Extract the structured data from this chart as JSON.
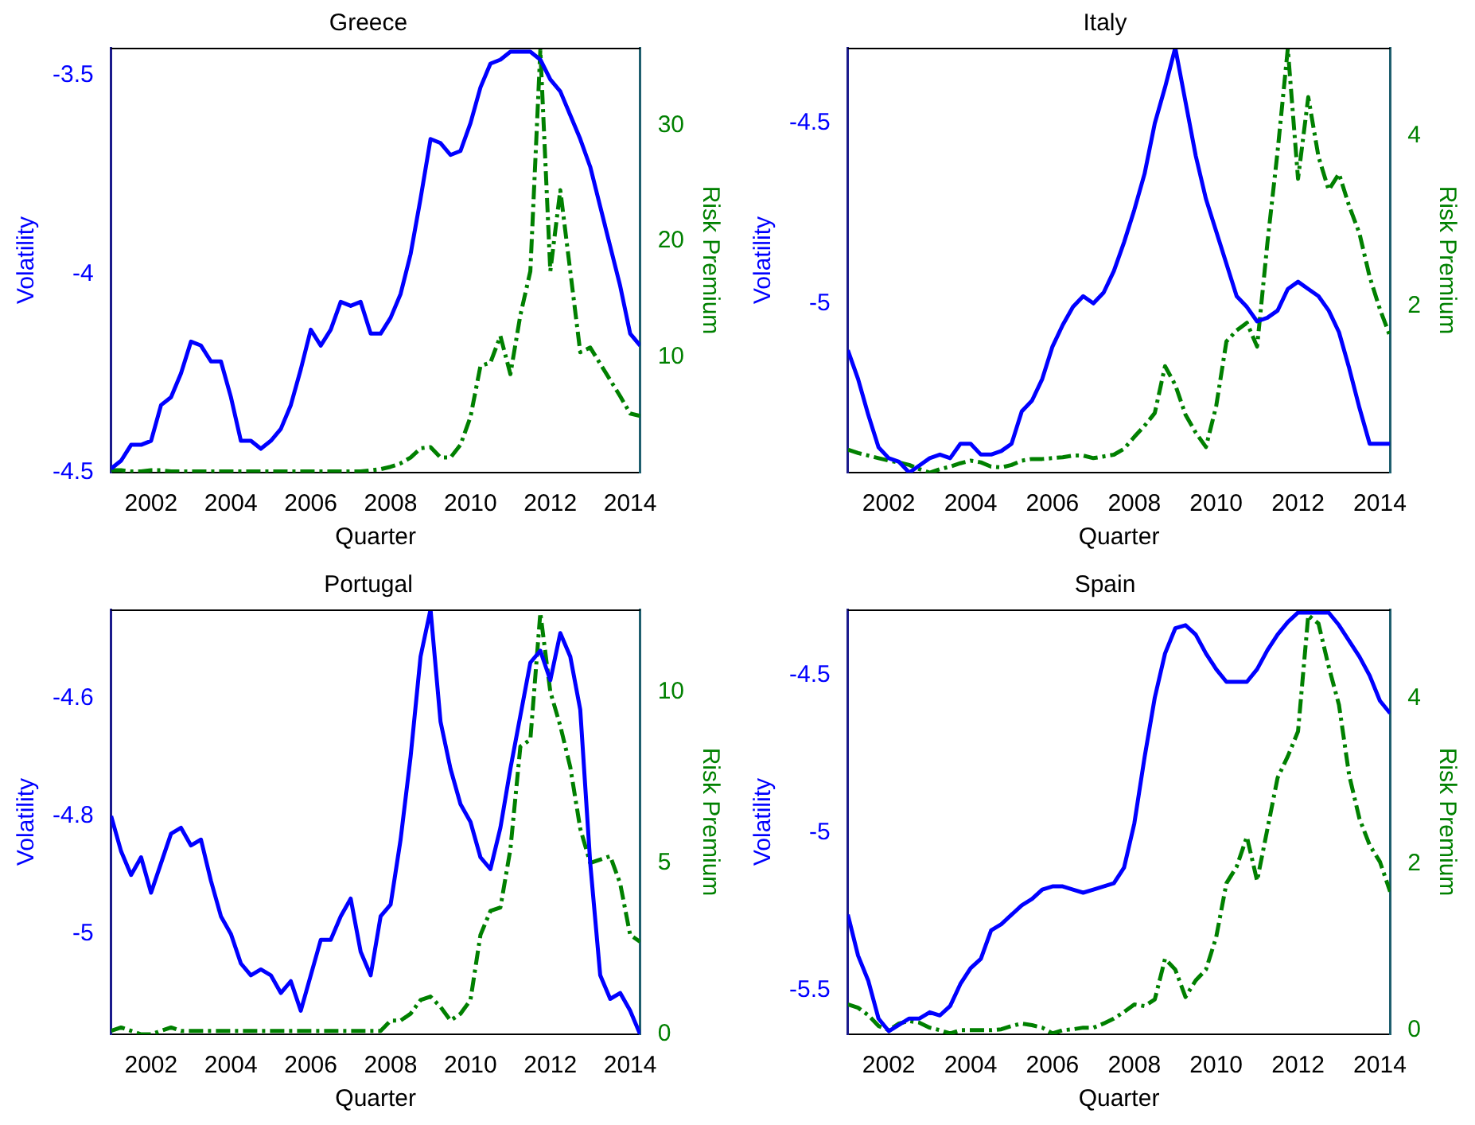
{
  "chart_data": [
    {
      "type": "line",
      "title": "Greece",
      "xlabel": "Quarter",
      "ylabel": "Volatility",
      "y2label": "Risk Premium",
      "legend": false,
      "grid": false,
      "marker": "none",
      "x": [
        2001,
        2001.25,
        2001.5,
        2001.75,
        2002,
        2002.25,
        2002.5,
        2002.75,
        2003,
        2003.25,
        2003.5,
        2003.75,
        2004,
        2004.25,
        2004.5,
        2004.75,
        2005,
        2005.25,
        2005.5,
        2005.75,
        2006,
        2006.25,
        2006.5,
        2006.75,
        2007,
        2007.25,
        2007.5,
        2007.75,
        2008,
        2008.25,
        2008.5,
        2008.75,
        2009,
        2009.25,
        2009.5,
        2009.75,
        2010,
        2010.25,
        2010.5,
        2010.75,
        2011,
        2011.25,
        2011.5,
        2011.75,
        2012,
        2012.25,
        2012.5,
        2012.75,
        2013,
        2013.25,
        2013.5,
        2013.75,
        2014,
        2014.25
      ],
      "xlim": [
        2001,
        2014.25
      ],
      "xticks": [
        2002,
        2004,
        2006,
        2008,
        2010,
        2012,
        2014
      ],
      "ylim": [
        -4.5,
        -3.43
      ],
      "yticks": [
        -4.5,
        -4,
        -3.5
      ],
      "y2lim": [
        0,
        36.7
      ],
      "y2ticks": [
        10,
        20,
        30
      ],
      "series": [
        {
          "color": "#0000ff",
          "line_style": "solid",
          "values": [
            -4.49,
            -4.47,
            -4.43,
            -4.43,
            -4.42,
            -4.33,
            -4.31,
            -4.25,
            -4.17,
            -4.18,
            -4.22,
            -4.22,
            -4.31,
            -4.42,
            -4.42,
            -4.44,
            -4.42,
            -4.39,
            -4.33,
            -4.24,
            -4.14,
            -4.18,
            -4.14,
            -4.07,
            -4.08,
            -4.07,
            -4.15,
            -4.15,
            -4.11,
            -4.05,
            -3.95,
            -3.81,
            -3.66,
            -3.67,
            -3.7,
            -3.69,
            -3.62,
            -3.53,
            -3.47,
            -3.46,
            -3.44,
            -3.44,
            -3.44,
            -3.46,
            -3.51,
            -3.54,
            -3.6,
            -3.66,
            -3.73,
            -3.83,
            -3.93,
            -4.03,
            -4.15,
            -4.18
          ]
        },
        {
          "color": "#008000",
          "line_style": "dashed",
          "axis": "y2",
          "values": [
            0.2,
            0.2,
            0.1,
            0.1,
            0.2,
            0.2,
            0.1,
            0.1,
            0.1,
            0.1,
            0.1,
            0.1,
            0.1,
            0.1,
            0.1,
            0.1,
            0.1,
            0.1,
            0.1,
            0.1,
            0.1,
            0.1,
            0.1,
            0.1,
            0.1,
            0.1,
            0.2,
            0.3,
            0.5,
            0.8,
            1.3,
            2.1,
            2.2,
            1.3,
            1.3,
            2.4,
            4.8,
            9.2,
            9.5,
            11.8,
            8.5,
            13.6,
            17.4,
            36.5,
            17.4,
            24.4,
            17.4,
            10.4,
            10.8,
            9.4,
            8.0,
            6.6,
            5.1,
            4.9
          ]
        }
      ]
    },
    {
      "type": "line",
      "title": "Italy",
      "xlabel": "Quarter",
      "ylabel": "Volatility",
      "y2label": "Risk Premium",
      "legend": false,
      "grid": false,
      "marker": "none",
      "x": [
        2001,
        2001.25,
        2001.5,
        2001.75,
        2002,
        2002.25,
        2002.5,
        2002.75,
        2003,
        2003.25,
        2003.5,
        2003.75,
        2004,
        2004.25,
        2004.5,
        2004.75,
        2005,
        2005.25,
        2005.5,
        2005.75,
        2006,
        2006.25,
        2006.5,
        2006.75,
        2007,
        2007.25,
        2007.5,
        2007.75,
        2008,
        2008.25,
        2008.5,
        2008.75,
        2009,
        2009.25,
        2009.5,
        2009.75,
        2010,
        2010.25,
        2010.5,
        2010.75,
        2011,
        2011.25,
        2011.5,
        2011.75,
        2012,
        2012.25,
        2012.5,
        2012.75,
        2013,
        2013.25,
        2013.5,
        2013.75,
        2014,
        2014.25
      ],
      "xlim": [
        2001,
        2014.25
      ],
      "xticks": [
        2002,
        2004,
        2006,
        2008,
        2010,
        2012,
        2014
      ],
      "ylim": [
        -5.47,
        -4.29
      ],
      "yticks": [
        -5,
        -4.5
      ],
      "y2lim": [
        0.04,
        5.03
      ],
      "y2ticks": [
        2,
        4
      ],
      "series": [
        {
          "color": "#0000ff",
          "line_style": "solid",
          "values": [
            -5.13,
            -5.21,
            -5.31,
            -5.4,
            -5.43,
            -5.44,
            -5.47,
            -5.45,
            -5.43,
            -5.42,
            -5.43,
            -5.39,
            -5.39,
            -5.42,
            -5.42,
            -5.41,
            -5.39,
            -5.3,
            -5.27,
            -5.21,
            -5.12,
            -5.06,
            -5.01,
            -4.98,
            -5.0,
            -4.97,
            -4.91,
            -4.83,
            -4.74,
            -4.64,
            -4.5,
            -4.4,
            -4.29,
            -4.44,
            -4.59,
            -4.71,
            -4.8,
            -4.89,
            -4.98,
            -5.01,
            -5.05,
            -5.04,
            -5.02,
            -4.96,
            -4.94,
            -4.96,
            -4.98,
            -5.02,
            -5.08,
            -5.18,
            -5.29,
            -5.39,
            -5.39,
            -5.39
          ]
        },
        {
          "color": "#008000",
          "line_style": "dashed",
          "axis": "y2",
          "values": [
            0.31,
            0.27,
            0.24,
            0.21,
            0.18,
            0.16,
            0.13,
            0.08,
            0.04,
            0.08,
            0.11,
            0.15,
            0.18,
            0.16,
            0.11,
            0.1,
            0.13,
            0.18,
            0.2,
            0.2,
            0.21,
            0.22,
            0.24,
            0.24,
            0.21,
            0.23,
            0.25,
            0.32,
            0.46,
            0.59,
            0.74,
            1.29,
            1.07,
            0.72,
            0.51,
            0.34,
            0.82,
            1.58,
            1.71,
            1.8,
            1.52,
            2.73,
            3.81,
            5.02,
            3.49,
            4.45,
            3.75,
            3.36,
            3.55,
            3.17,
            2.85,
            2.34,
            1.96,
            1.64
          ]
        }
      ]
    },
    {
      "type": "line",
      "title": "Portugal",
      "xlabel": "Quarter",
      "ylabel": "Volatility",
      "y2label": "Risk Premium",
      "legend": false,
      "grid": false,
      "marker": "none",
      "x": [
        2001,
        2001.25,
        2001.5,
        2001.75,
        2002,
        2002.25,
        2002.5,
        2002.75,
        2003,
        2003.25,
        2003.5,
        2003.75,
        2004,
        2004.25,
        2004.5,
        2004.75,
        2005,
        2005.25,
        2005.5,
        2005.75,
        2006,
        2006.25,
        2006.5,
        2006.75,
        2007,
        2007.25,
        2007.5,
        2007.75,
        2008,
        2008.25,
        2008.5,
        2008.75,
        2009,
        2009.25,
        2009.5,
        2009.75,
        2010,
        2010.25,
        2010.5,
        2010.75,
        2011,
        2011.25,
        2011.5,
        2011.75,
        2012,
        2012.25,
        2012.5,
        2012.75,
        2013,
        2013.25,
        2013.5,
        2013.75,
        2014,
        2014.25
      ],
      "xlim": [
        2001,
        2014.25
      ],
      "xticks": [
        2002,
        2004,
        2006,
        2008,
        2010,
        2012,
        2014
      ],
      "ylim": [
        -5.17,
        -4.45
      ],
      "yticks": [
        -5,
        -4.8,
        -4.6
      ],
      "y2lim": [
        0,
        12.4
      ],
      "y2ticks": [
        0,
        5,
        10
      ],
      "series": [
        {
          "color": "#0000ff",
          "line_style": "solid",
          "values": [
            -4.8,
            -4.86,
            -4.9,
            -4.87,
            -4.93,
            -4.88,
            -4.83,
            -4.82,
            -4.85,
            -4.84,
            -4.91,
            -4.97,
            -5.0,
            -5.05,
            -5.07,
            -5.06,
            -5.07,
            -5.1,
            -5.08,
            -5.13,
            -5.07,
            -5.01,
            -5.01,
            -4.97,
            -4.94,
            -5.03,
            -5.07,
            -4.97,
            -4.95,
            -4.84,
            -4.7,
            -4.53,
            -4.45,
            -4.64,
            -4.72,
            -4.78,
            -4.81,
            -4.87,
            -4.89,
            -4.82,
            -4.72,
            -4.63,
            -4.54,
            -4.52,
            -4.57,
            -4.49,
            -4.53,
            -4.62,
            -4.88,
            -5.07,
            -5.11,
            -5.1,
            -5.13,
            -5.17
          ]
        },
        {
          "color": "#008000",
          "line_style": "dashed",
          "axis": "y2",
          "values": [
            0.1,
            0.2,
            0.1,
            0,
            0,
            0.1,
            0.2,
            0.1,
            0.1,
            0.1,
            0.1,
            0.1,
            0.1,
            0.1,
            0.1,
            0.1,
            0.1,
            0.1,
            0.1,
            0.1,
            0.1,
            0.1,
            0.1,
            0.1,
            0.1,
            0.1,
            0.1,
            0.1,
            0.4,
            0.4,
            0.6,
            1.0,
            1.1,
            0.8,
            0.4,
            0.6,
            1.0,
            2.9,
            3.6,
            3.7,
            5.4,
            8.4,
            8.6,
            12.3,
            10.0,
            9.0,
            7.8,
            6.0,
            5.0,
            5.1,
            5.2,
            4.4,
            2.9,
            2.7
          ]
        }
      ]
    },
    {
      "type": "line",
      "title": "Spain",
      "xlabel": "Quarter",
      "ylabel": "Volatility",
      "y2label": "Risk Premium",
      "legend": false,
      "grid": false,
      "marker": "none",
      "x": [
        2001,
        2001.25,
        2001.5,
        2001.75,
        2002,
        2002.25,
        2002.5,
        2002.75,
        2003,
        2003.25,
        2003.5,
        2003.75,
        2004,
        2004.25,
        2004.5,
        2004.75,
        2005,
        2005.25,
        2005.5,
        2005.75,
        2006,
        2006.25,
        2006.5,
        2006.75,
        2007,
        2007.25,
        2007.5,
        2007.75,
        2008,
        2008.25,
        2008.5,
        2008.75,
        2009,
        2009.25,
        2009.5,
        2009.75,
        2010,
        2010.25,
        2010.5,
        2010.75,
        2011,
        2011.25,
        2011.5,
        2011.75,
        2012,
        2012.25,
        2012.5,
        2012.75,
        2013,
        2013.25,
        2013.5,
        2013.75,
        2014,
        2014.25
      ],
      "xlim": [
        2001,
        2014.25
      ],
      "xticks": [
        2002,
        2004,
        2006,
        2008,
        2010,
        2012,
        2014
      ],
      "ylim": [
        -5.64,
        -4.29
      ],
      "yticks": [
        -5.5,
        -5,
        -4.5
      ],
      "y2lim": [
        -0.05,
        5.07
      ],
      "y2ticks": [
        0,
        2,
        4
      ],
      "series": [
        {
          "color": "#0000ff",
          "line_style": "solid",
          "values": [
            -5.26,
            -5.39,
            -5.47,
            -5.59,
            -5.63,
            -5.61,
            -5.59,
            -5.59,
            -5.57,
            -5.58,
            -5.55,
            -5.48,
            -5.43,
            -5.4,
            -5.31,
            -5.29,
            -5.26,
            -5.23,
            -5.21,
            -5.18,
            -5.17,
            -5.17,
            -5.18,
            -5.19,
            -5.18,
            -5.17,
            -5.16,
            -5.11,
            -4.97,
            -4.76,
            -4.57,
            -4.43,
            -4.35,
            -4.34,
            -4.37,
            -4.43,
            -4.48,
            -4.52,
            -4.52,
            -4.52,
            -4.48,
            -4.42,
            -4.37,
            -4.33,
            -4.3,
            -4.3,
            -4.3,
            -4.3,
            -4.34,
            -4.39,
            -4.44,
            -4.5,
            -4.58,
            -4.62
          ]
        },
        {
          "color": "#008000",
          "line_style": "dashed",
          "axis": "y2",
          "values": [
            0.31,
            0.27,
            0.18,
            0.05,
            0,
            0.08,
            0.11,
            0.09,
            0.03,
            0,
            -0.04,
            0,
            0,
            0,
            0,
            0.01,
            0.05,
            0.08,
            0.06,
            0.03,
            -0.04,
            0,
            0.01,
            0.03,
            0.03,
            0.08,
            0.14,
            0.22,
            0.31,
            0.29,
            0.37,
            0.86,
            0.73,
            0.4,
            0.6,
            0.73,
            1.12,
            1.77,
            1.97,
            2.33,
            1.8,
            2.42,
            3.04,
            3.3,
            3.6,
            5.0,
            4.9,
            4.38,
            3.92,
            3.07,
            2.55,
            2.23,
            2.03,
            1.67
          ]
        }
      ]
    }
  ]
}
